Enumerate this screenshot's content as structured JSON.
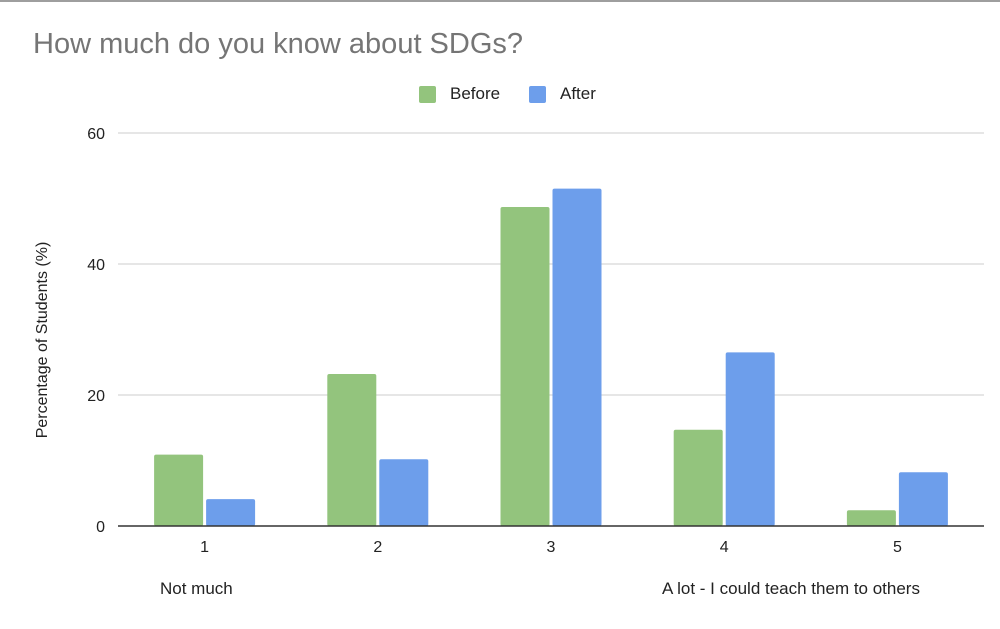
{
  "chart_data": {
    "type": "bar",
    "title": "How much do you know about SDGs?",
    "ylabel": "Percentage of Students (%)",
    "xlabel": "",
    "categories": [
      "1",
      "2",
      "3",
      "4",
      "5"
    ],
    "series": [
      {
        "name": "Before",
        "color": "#93c47d",
        "values": [
          10.9,
          23.2,
          48.7,
          14.7,
          2.4
        ]
      },
      {
        "name": "After",
        "color": "#6d9eeb",
        "values": [
          4.1,
          10.2,
          51.5,
          26.5,
          8.2
        ]
      }
    ],
    "ylim": [
      0,
      60
    ],
    "yticks": [
      0,
      20,
      40,
      60
    ],
    "grid": true,
    "legend_position": "top-center",
    "scale_notes": {
      "low": "Not much",
      "high": "A lot - I could teach them to others"
    }
  }
}
